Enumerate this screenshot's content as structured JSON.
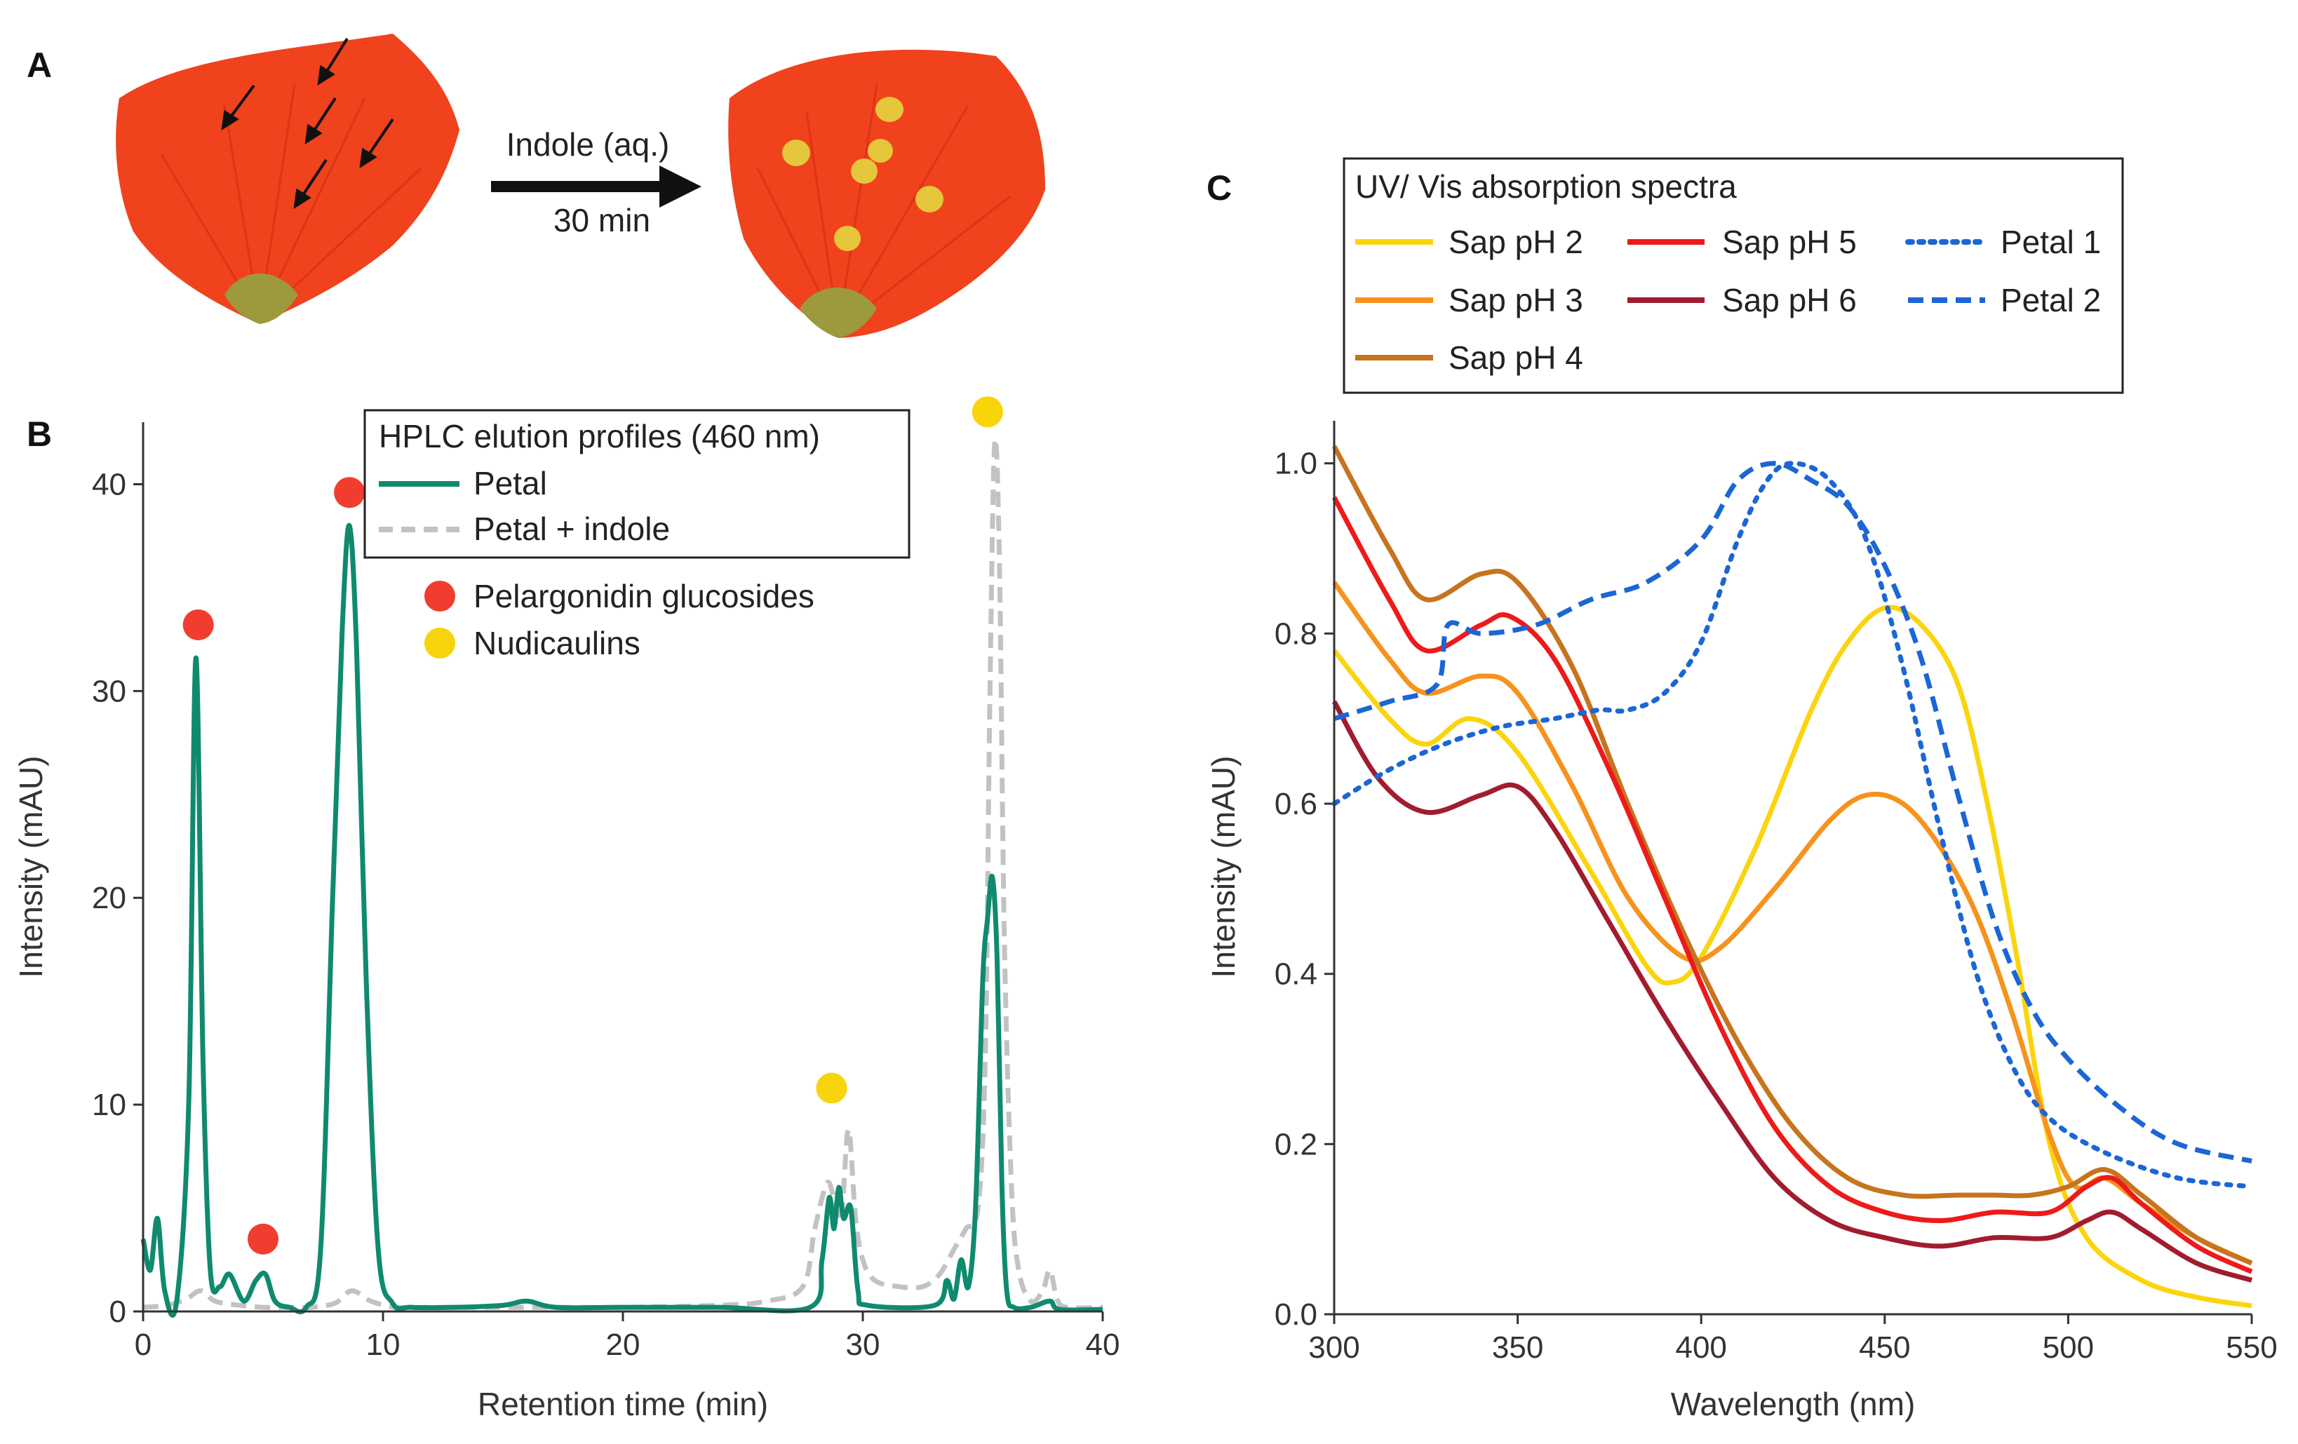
{
  "panel_labels": {
    "a": "A",
    "b": "B",
    "c": "C"
  },
  "panel_a": {
    "treatment_label": "Indole (aq.)",
    "time_label": "30 min",
    "colors": {
      "petal": "#f0421c",
      "petal_dark": "#d42e12",
      "base": "#9c9a3c",
      "spot": "#e6c63a"
    }
  },
  "chart_data": [
    {
      "type": "line",
      "title": "HPLC elution profiles (460 nm)",
      "xlabel": "Retention time (min)",
      "ylabel": "Intensity (mAU)",
      "xlim": [
        0,
        40
      ],
      "ylim": [
        0,
        43
      ],
      "xticks": [
        0,
        10,
        20,
        30,
        40
      ],
      "yticks": [
        0,
        10,
        20,
        30,
        40
      ],
      "legend_location": "top-center",
      "series": [
        {
          "name": "Petal",
          "color": "#0f8a6f",
          "style": "solid",
          "x": [
            0,
            0.3,
            0.6,
            0.9,
            1.4,
            1.9,
            2.2,
            2.5,
            2.8,
            3.2,
            3.6,
            4.2,
            4.7,
            5.1,
            5.5,
            6.1,
            6.8,
            7.4,
            7.9,
            8.3,
            8.6,
            8.9,
            9.3,
            9.8,
            10.4,
            11.2,
            13.0,
            15.0,
            16.0,
            17.2,
            20,
            24,
            27.8,
            28.3,
            28.6,
            28.8,
            29.0,
            29.2,
            29.5,
            29.8,
            30.2,
            33.0,
            33.5,
            33.8,
            34.1,
            34.4,
            34.7,
            35.0,
            35.2,
            35.4,
            35.6,
            35.8,
            36.0,
            36.3,
            37.0,
            37.8,
            38.2,
            40
          ],
          "y": [
            3.5,
            2.0,
            4.5,
            1.0,
            0.5,
            10.0,
            31.6,
            12.0,
            2.0,
            1.2,
            1.8,
            0.5,
            1.5,
            1.8,
            0.5,
            0.2,
            0.2,
            3.0,
            20.0,
            33.0,
            38.0,
            32.0,
            16.0,
            3.0,
            0.4,
            0.2,
            0.2,
            0.3,
            0.5,
            0.2,
            0.2,
            0.2,
            0.2,
            2.5,
            5.5,
            4.0,
            6.0,
            4.5,
            5.0,
            1.0,
            0.3,
            0.3,
            1.5,
            0.6,
            2.5,
            1.2,
            5.0,
            16.0,
            19.0,
            21.0,
            17.0,
            6.0,
            1.0,
            0.2,
            0.2,
            0.5,
            0.1,
            0.1
          ]
        },
        {
          "name": "Petal + indole",
          "color": "#c2c2c2",
          "style": "dashed",
          "x": [
            0,
            1.0,
            1.8,
            2.4,
            3.0,
            4.0,
            5.0,
            6.0,
            7.0,
            8.0,
            8.7,
            9.5,
            10.5,
            12,
            14,
            16,
            18,
            20,
            24,
            26,
            27.5,
            28.0,
            28.5,
            28.8,
            29.1,
            29.4,
            29.7,
            30.0,
            30.5,
            31.5,
            32.5,
            33.2,
            33.8,
            34.3,
            34.8,
            35.1,
            35.3,
            35.5,
            35.7,
            35.9,
            36.2,
            36.5,
            37.0,
            37.5,
            37.8,
            38.1,
            38.5,
            40
          ],
          "y": [
            0.2,
            0.3,
            0.6,
            1.0,
            0.5,
            0.3,
            0.2,
            0.2,
            0.2,
            0.4,
            1.0,
            0.5,
            0.2,
            0.2,
            0.2,
            0.2,
            0.2,
            0.2,
            0.3,
            0.5,
            1.2,
            4.0,
            6.2,
            5.5,
            4.5,
            8.8,
            4.5,
            2.5,
            1.5,
            1.2,
            1.2,
            1.8,
            3.0,
            4.0,
            5.0,
            12.0,
            30.0,
            42.0,
            36.0,
            18.0,
            6.0,
            2.0,
            0.5,
            1.0,
            2.0,
            0.6,
            0.2,
            0.2
          ]
        }
      ],
      "markers": [
        {
          "name": "Pelargonidin glucosides",
          "color": "#f03d2f",
          "points": [
            {
              "x": 2.3,
              "y": 33.2
            },
            {
              "x": 5.0,
              "y": 3.5
            },
            {
              "x": 8.6,
              "y": 39.6
            }
          ]
        },
        {
          "name": "Nudicaulins",
          "color": "#f8d40a",
          "points": [
            {
              "x": 28.7,
              "y": 10.8
            },
            {
              "x": 35.2,
              "y": 43.5
            }
          ]
        }
      ]
    },
    {
      "type": "line",
      "title": "UV/ Vis absorption spectra",
      "xlabel": "Wavelength (nm)",
      "ylabel": "Intensity (mAU)",
      "xlim": [
        300,
        550
      ],
      "ylim": [
        0,
        1.05
      ],
      "xticks": [
        300,
        350,
        400,
        450,
        500,
        550
      ],
      "yticks": [
        0.0,
        0.2,
        0.4,
        0.6,
        0.8,
        1.0
      ],
      "legend_location": "top",
      "series": [
        {
          "name": "Sap pH 2",
          "color": "#fcd40c",
          "style": "solid",
          "x": [
            300,
            315,
            325,
            337,
            350,
            370,
            385,
            392,
            400,
            415,
            430,
            440,
            450,
            460,
            470,
            478,
            486,
            495,
            505,
            520,
            535,
            550
          ],
          "y": [
            0.78,
            0.7,
            0.67,
            0.7,
            0.66,
            0.52,
            0.41,
            0.39,
            0.42,
            0.55,
            0.71,
            0.79,
            0.83,
            0.81,
            0.74,
            0.6,
            0.42,
            0.2,
            0.09,
            0.04,
            0.02,
            0.01
          ]
        },
        {
          "name": "Sap pH 3",
          "color": "#f7921c",
          "style": "solid",
          "x": [
            300,
            315,
            325,
            340,
            350,
            365,
            380,
            395,
            405,
            420,
            435,
            445,
            455,
            465,
            475,
            485,
            495,
            502,
            510,
            520,
            535,
            550
          ],
          "y": [
            0.86,
            0.77,
            0.73,
            0.75,
            0.73,
            0.62,
            0.49,
            0.42,
            0.43,
            0.5,
            0.58,
            0.61,
            0.6,
            0.55,
            0.47,
            0.35,
            0.21,
            0.15,
            0.16,
            0.13,
            0.09,
            0.06
          ]
        },
        {
          "name": "Sap pH 4",
          "color": "#c6741e",
          "style": "solid",
          "x": [
            300,
            315,
            325,
            340,
            350,
            365,
            380,
            395,
            410,
            425,
            440,
            455,
            470,
            480,
            490,
            500,
            510,
            520,
            535,
            550
          ],
          "y": [
            1.02,
            0.9,
            0.84,
            0.87,
            0.86,
            0.76,
            0.6,
            0.45,
            0.32,
            0.22,
            0.16,
            0.14,
            0.14,
            0.14,
            0.14,
            0.15,
            0.17,
            0.14,
            0.09,
            0.06
          ]
        },
        {
          "name": "Sap pH 5",
          "color": "#ee1a1a",
          "style": "solid",
          "x": [
            300,
            315,
            325,
            340,
            348,
            360,
            375,
            390,
            405,
            420,
            435,
            450,
            465,
            480,
            495,
            505,
            512,
            520,
            535,
            550
          ],
          "y": [
            0.96,
            0.84,
            0.78,
            0.81,
            0.82,
            0.77,
            0.64,
            0.49,
            0.34,
            0.22,
            0.15,
            0.12,
            0.11,
            0.12,
            0.12,
            0.15,
            0.16,
            0.13,
            0.08,
            0.05
          ]
        },
        {
          "name": "Sap pH 6",
          "color": "#a11c2e",
          "style": "solid",
          "x": [
            300,
            312,
            325,
            340,
            350,
            360,
            375,
            390,
            405,
            420,
            435,
            450,
            465,
            480,
            495,
            505,
            512,
            520,
            535,
            550
          ],
          "y": [
            0.72,
            0.63,
            0.59,
            0.61,
            0.62,
            0.57,
            0.46,
            0.35,
            0.25,
            0.16,
            0.11,
            0.09,
            0.08,
            0.09,
            0.09,
            0.11,
            0.12,
            0.1,
            0.06,
            0.04
          ]
        },
        {
          "name": "Petal 1",
          "color": "#1b66d6",
          "style": "dotted",
          "x": [
            300,
            315,
            330,
            345,
            360,
            372,
            380,
            390,
            400,
            410,
            418,
            425,
            435,
            445,
            455,
            465,
            475,
            485,
            495,
            510,
            530,
            550
          ],
          "y": [
            0.6,
            0.64,
            0.67,
            0.69,
            0.7,
            0.71,
            0.71,
            0.73,
            0.79,
            0.91,
            0.98,
            1.0,
            0.98,
            0.91,
            0.76,
            0.57,
            0.4,
            0.29,
            0.23,
            0.19,
            0.16,
            0.15
          ]
        },
        {
          "name": "Petal 2",
          "color": "#1b66d6",
          "style": "dashed",
          "x": [
            300,
            315,
            328,
            331,
            340,
            355,
            370,
            385,
            400,
            410,
            420,
            430,
            440,
            450,
            460,
            470,
            480,
            490,
            500,
            515,
            530,
            550
          ],
          "y": [
            0.7,
            0.72,
            0.74,
            0.81,
            0.8,
            0.81,
            0.84,
            0.86,
            0.91,
            0.98,
            1.0,
            0.98,
            0.95,
            0.88,
            0.77,
            0.61,
            0.46,
            0.36,
            0.3,
            0.24,
            0.2,
            0.18
          ]
        }
      ]
    }
  ]
}
